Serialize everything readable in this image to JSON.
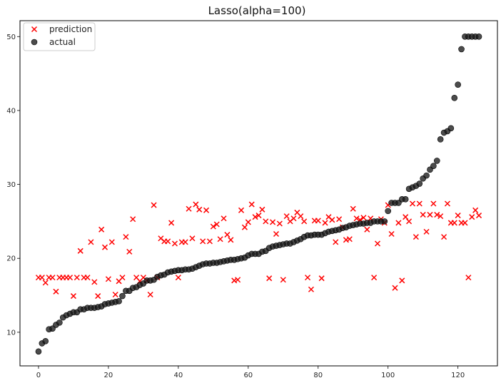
{
  "chart_data": {
    "type": "scatter",
    "title": "Lasso(alpha=100)",
    "xlabel": "",
    "ylabel": "",
    "xlim": [
      -5.3,
      131.3
    ],
    "ylim": [
      5.45,
      52.15
    ],
    "xticks": [
      0,
      20,
      40,
      60,
      80,
      100,
      120
    ],
    "yticks": [
      10,
      20,
      30,
      40,
      50
    ],
    "grid": false,
    "legend_position": "upper left",
    "series": [
      {
        "name": "prediction",
        "marker": "x",
        "color": "#ff0000",
        "x": [
          0,
          1,
          2,
          3,
          4,
          5,
          6,
          7,
          8,
          9,
          10,
          11,
          12,
          13,
          14,
          15,
          16,
          17,
          18,
          19,
          20,
          21,
          22,
          23,
          24,
          25,
          26,
          27,
          28,
          29,
          30,
          31,
          32,
          33,
          34,
          35,
          36,
          37,
          38,
          39,
          40,
          41,
          42,
          43,
          44,
          45,
          46,
          47,
          48,
          49,
          50,
          51,
          52,
          53,
          54,
          55,
          56,
          57,
          58,
          59,
          60,
          61,
          62,
          63,
          64,
          65,
          66,
          67,
          68,
          69,
          70,
          71,
          72,
          73,
          74,
          75,
          76,
          77,
          78,
          79,
          80,
          81,
          82,
          83,
          84,
          85,
          86,
          87,
          88,
          89,
          90,
          91,
          92,
          93,
          94,
          95,
          96,
          97,
          98,
          99,
          100,
          101,
          102,
          103,
          104,
          105,
          106,
          107,
          108,
          109,
          110,
          111,
          112,
          113,
          114,
          115,
          116,
          117,
          118,
          119,
          120,
          121,
          122,
          123,
          124,
          125,
          126
        ],
        "y": [
          17.4,
          17.4,
          16.7,
          17.4,
          17.4,
          15.5,
          17.4,
          17.4,
          17.4,
          17.4,
          14.9,
          17.4,
          21.0,
          17.4,
          17.4,
          22.2,
          16.8,
          14.9,
          23.9,
          21.5,
          17.2,
          22.2,
          15.1,
          16.9,
          17.4,
          22.9,
          20.9,
          25.3,
          17.4,
          16.9,
          17.4,
          17.0,
          15.1,
          27.2,
          17.4,
          22.7,
          22.3,
          22.3,
          24.8,
          22.0,
          17.4,
          22.2,
          22.2,
          26.7,
          22.7,
          27.3,
          26.6,
          22.3,
          26.5,
          22.3,
          24.3,
          24.6,
          22.6,
          25.4,
          23.2,
          22.5,
          17.0,
          17.1,
          26.5,
          24.2,
          24.9,
          27.3,
          25.6,
          25.8,
          26.6,
          25.0,
          17.3,
          24.9,
          23.3,
          24.7,
          17.1,
          25.7,
          25.0,
          25.4,
          26.2,
          25.7,
          25.0,
          17.4,
          15.8,
          25.1,
          25.1,
          17.3,
          24.8,
          25.6,
          25.2,
          22.2,
          25.3,
          24.2,
          22.5,
          22.6,
          26.7,
          25.4,
          25.2,
          25.5,
          23.9,
          25.4,
          17.4,
          22.0,
          25.3,
          24.8,
          27.2,
          23.3,
          16.0,
          24.8,
          17.0,
          25.6,
          25.0,
          27.4,
          22.9,
          27.4,
          25.9,
          23.6,
          25.9,
          27.4,
          25.9,
          25.7,
          22.9,
          27.4,
          24.8,
          24.8,
          25.8,
          24.8,
          24.8,
          17.4,
          25.6,
          26.5,
          25.8
        ]
      },
      {
        "name": "actual",
        "marker": "o",
        "color": "#1a1a1a",
        "x": [
          0,
          1,
          2,
          3,
          4,
          5,
          6,
          7,
          8,
          9,
          10,
          11,
          12,
          13,
          14,
          15,
          16,
          17,
          18,
          19,
          20,
          21,
          22,
          23,
          24,
          25,
          26,
          27,
          28,
          29,
          30,
          31,
          32,
          33,
          34,
          35,
          36,
          37,
          38,
          39,
          40,
          41,
          42,
          43,
          44,
          45,
          46,
          47,
          48,
          49,
          50,
          51,
          52,
          53,
          54,
          55,
          56,
          57,
          58,
          59,
          60,
          61,
          62,
          63,
          64,
          65,
          66,
          67,
          68,
          69,
          70,
          71,
          72,
          73,
          74,
          75,
          76,
          77,
          78,
          79,
          80,
          81,
          82,
          83,
          84,
          85,
          86,
          87,
          88,
          89,
          90,
          91,
          92,
          93,
          94,
          95,
          96,
          97,
          98,
          99,
          100,
          101,
          102,
          103,
          104,
          105,
          106,
          107,
          108,
          109,
          110,
          111,
          112,
          113,
          114,
          115,
          116,
          117,
          118,
          119,
          120,
          121,
          122,
          123,
          124,
          125,
          126
        ],
        "y": [
          7.4,
          8.5,
          8.8,
          10.4,
          10.5,
          11.0,
          11.3,
          12.0,
          12.3,
          12.5,
          12.7,
          12.7,
          13.1,
          13.1,
          13.3,
          13.3,
          13.3,
          13.4,
          13.5,
          13.8,
          13.9,
          14.0,
          14.1,
          14.2,
          14.9,
          15.6,
          15.6,
          16.0,
          16.1,
          16.4,
          16.6,
          17.0,
          17.0,
          17.1,
          17.5,
          17.7,
          17.8,
          18.1,
          18.2,
          18.3,
          18.4,
          18.4,
          18.5,
          18.5,
          18.6,
          18.8,
          19.0,
          19.2,
          19.3,
          19.3,
          19.4,
          19.4,
          19.5,
          19.6,
          19.7,
          19.8,
          19.8,
          19.9,
          20.0,
          20.1,
          20.4,
          20.6,
          20.6,
          20.6,
          20.9,
          21.0,
          21.4,
          21.6,
          21.7,
          21.8,
          21.9,
          22.0,
          22.0,
          22.2,
          22.4,
          22.6,
          22.9,
          23.1,
          23.1,
          23.2,
          23.2,
          23.2,
          23.4,
          23.6,
          23.7,
          23.8,
          23.9,
          24.1,
          24.2,
          24.4,
          24.5,
          24.6,
          24.7,
          24.7,
          24.8,
          24.8,
          25.0,
          25.0,
          25.0,
          25.0,
          26.4,
          27.5,
          27.5,
          27.5,
          28.0,
          28.0,
          29.4,
          29.6,
          29.8,
          30.1,
          30.8,
          31.2,
          32.0,
          32.5,
          33.2,
          36.1,
          37.0,
          37.2,
          37.6,
          41.7,
          43.5,
          48.3,
          50.0,
          50.0,
          50.0,
          50.0,
          50.0
        ]
      }
    ]
  }
}
